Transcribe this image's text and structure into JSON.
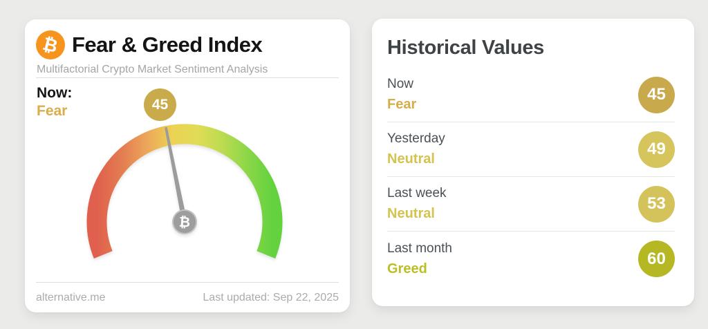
{
  "left_card": {
    "bitcoin_symbol": "₿",
    "title": "Fear & Greed Index",
    "subtitle": "Multifactorial Crypto Market Sentiment Analysis",
    "now_label": "Now:",
    "now_classification": "Fear",
    "now_classification_color": "#d9ae49",
    "now_value": "45",
    "now_badge_color": "#c9ab4c",
    "footer_site": "alternative.me",
    "footer_updated": "Last updated: Sep 22, 2025"
  },
  "gauge": {
    "value": 45,
    "min": 0,
    "max": 100,
    "start_angle": 202,
    "end_angle": -22,
    "gradient": [
      "#e0604d",
      "#e37d50",
      "#eda65a",
      "#ecd253",
      "#e0dc55",
      "#bcdb50",
      "#8cd748",
      "#63d23e"
    ],
    "needle_color": "#9c9c9c",
    "hub_color": "#9d9d9d",
    "hub_ring_color": "#c2c2c2"
  },
  "right_card": {
    "title": "Historical Values",
    "rows": [
      {
        "label": "Now",
        "classification": "Fear",
        "value": "45",
        "badge_color": "#c8a94b",
        "text_color": "#d3ae4a"
      },
      {
        "label": "Yesterday",
        "classification": "Neutral",
        "value": "49",
        "badge_color": "#d6c55c",
        "text_color": "#d4c34f"
      },
      {
        "label": "Last week",
        "classification": "Neutral",
        "value": "53",
        "badge_color": "#d4c35a",
        "text_color": "#d4c34f"
      },
      {
        "label": "Last month",
        "classification": "Greed",
        "value": "60",
        "badge_color": "#b5b822",
        "text_color": "#bcbe25"
      }
    ]
  },
  "chart_data": {
    "type": "gauge",
    "title": "Fear & Greed Index",
    "value": 45,
    "min": 0,
    "max": 100,
    "classification": "Fear",
    "scale_note": "0 = fear (red, left end) to 100 = greed (green, right end)",
    "historical": [
      {
        "period": "Now",
        "classification": "Fear",
        "value": 45
      },
      {
        "period": "Yesterday",
        "classification": "Neutral",
        "value": 49
      },
      {
        "period": "Last week",
        "classification": "Neutral",
        "value": 53
      },
      {
        "period": "Last month",
        "classification": "Greed",
        "value": 60
      }
    ]
  }
}
